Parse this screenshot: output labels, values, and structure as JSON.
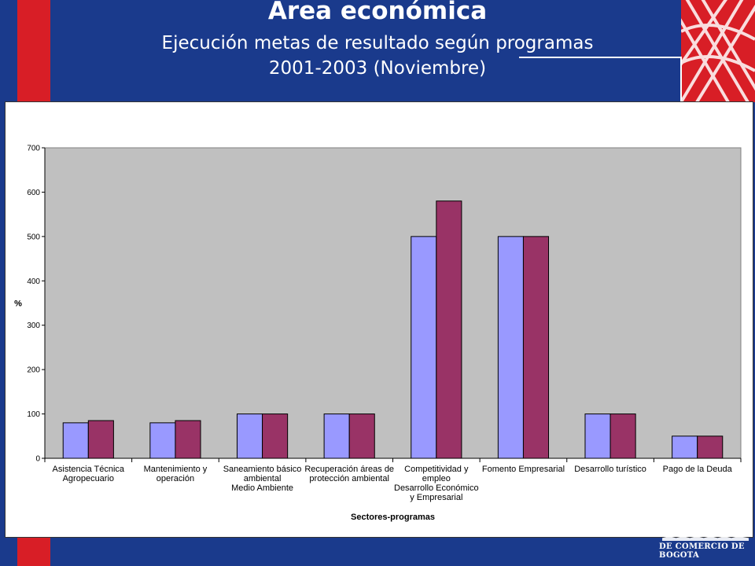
{
  "header": {
    "title": "Área económica",
    "subtitle": "Ejecución metas de resultado según programas",
    "period": "2001-2003 (Noviembre)"
  },
  "brand": {
    "text": "DE COMERCIO DE BOGOTA"
  },
  "colors": {
    "background": "#1a3a8c",
    "accent_red": "#d81e26",
    "series_1": "#9999ff",
    "series_2": "#993366",
    "plot_bg": "#c0c0c0"
  },
  "chart_data": {
    "type": "bar",
    "xlabel": "Sectores-programas",
    "ylabel": "%",
    "ylim": [
      0,
      700
    ],
    "yticks": [
      "0",
      "100",
      "200",
      "300",
      "400",
      "500",
      "600",
      "700"
    ],
    "grid": false,
    "legend": "none",
    "categories": [
      [
        "Asistencia Técnica",
        "Agropecuario"
      ],
      [
        "Mantenimiento y",
        "operación"
      ],
      [
        "Saneamiento básico",
        "ambiental",
        "Medio Ambiente"
      ],
      [
        "Recuperación áreas de",
        "protección ambiental"
      ],
      [
        "Competitividad y",
        "empleo",
        "Desarrollo Económico",
        "y Empresarial"
      ],
      [
        "Fomento Empresarial"
      ],
      [
        "Desarrollo turístico"
      ],
      [
        "Pago de la Deuda"
      ]
    ],
    "series": [
      {
        "values": [
          80,
          80,
          100,
          100,
          500,
          500,
          100,
          50
        ]
      },
      {
        "values": [
          85,
          85,
          100,
          100,
          580,
          500,
          100,
          50
        ]
      }
    ]
  }
}
